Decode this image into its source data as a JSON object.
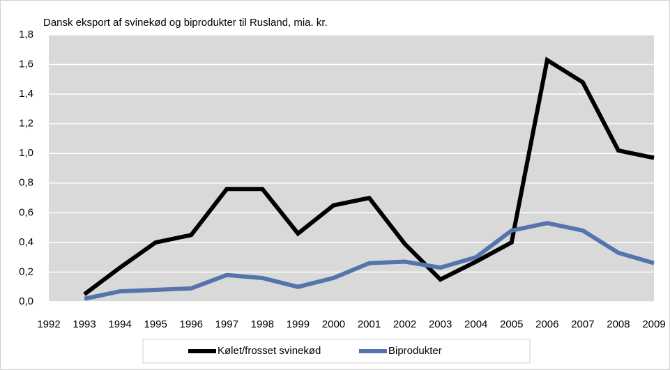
{
  "chart_data": {
    "type": "line",
    "title": "Dansk eksport af svinekød og biprodukter til Rusland, mia. kr.",
    "x": [
      1993,
      1994,
      1995,
      1996,
      1997,
      1998,
      1999,
      2000,
      2001,
      2002,
      2003,
      2004,
      2005,
      2006,
      2007,
      2008,
      2009
    ],
    "series": [
      {
        "name": "Kølet/frosset svinekød",
        "color": "#000000",
        "values": [
          0.05,
          0.23,
          0.4,
          0.45,
          0.76,
          0.76,
          0.46,
          0.65,
          0.7,
          0.39,
          0.15,
          0.27,
          0.4,
          1.63,
          1.48,
          1.02,
          0.97
        ]
      },
      {
        "name": "Biprodukter",
        "color": "#5574ad",
        "values": [
          0.02,
          0.07,
          0.08,
          0.09,
          0.18,
          0.16,
          0.1,
          0.16,
          0.26,
          0.27,
          0.23,
          0.3,
          0.48,
          0.53,
          0.48,
          0.33,
          0.26
        ]
      }
    ],
    "xlim": [
      1992,
      2009
    ],
    "xticks": [
      1992,
      1993,
      1994,
      1995,
      1996,
      1997,
      1998,
      1999,
      2000,
      2001,
      2002,
      2003,
      2004,
      2005,
      2006,
      2007,
      2008,
      2009
    ],
    "ylim": [
      0,
      1.8
    ],
    "yticks": [
      {
        "value": 0,
        "label": "0,0"
      },
      {
        "value": 0.2,
        "label": "0,2"
      },
      {
        "value": 0.4,
        "label": "0,4"
      },
      {
        "value": 0.6,
        "label": "0,6"
      },
      {
        "value": 0.8,
        "label": "0,8"
      },
      {
        "value": 1.0,
        "label": "1,0"
      },
      {
        "value": 1.2,
        "label": "1,2"
      },
      {
        "value": 1.4,
        "label": "1,4"
      },
      {
        "value": 1.6,
        "label": "1,6"
      },
      {
        "value": 1.8,
        "label": "1,8"
      }
    ],
    "grid": true,
    "legend": "bottom"
  }
}
